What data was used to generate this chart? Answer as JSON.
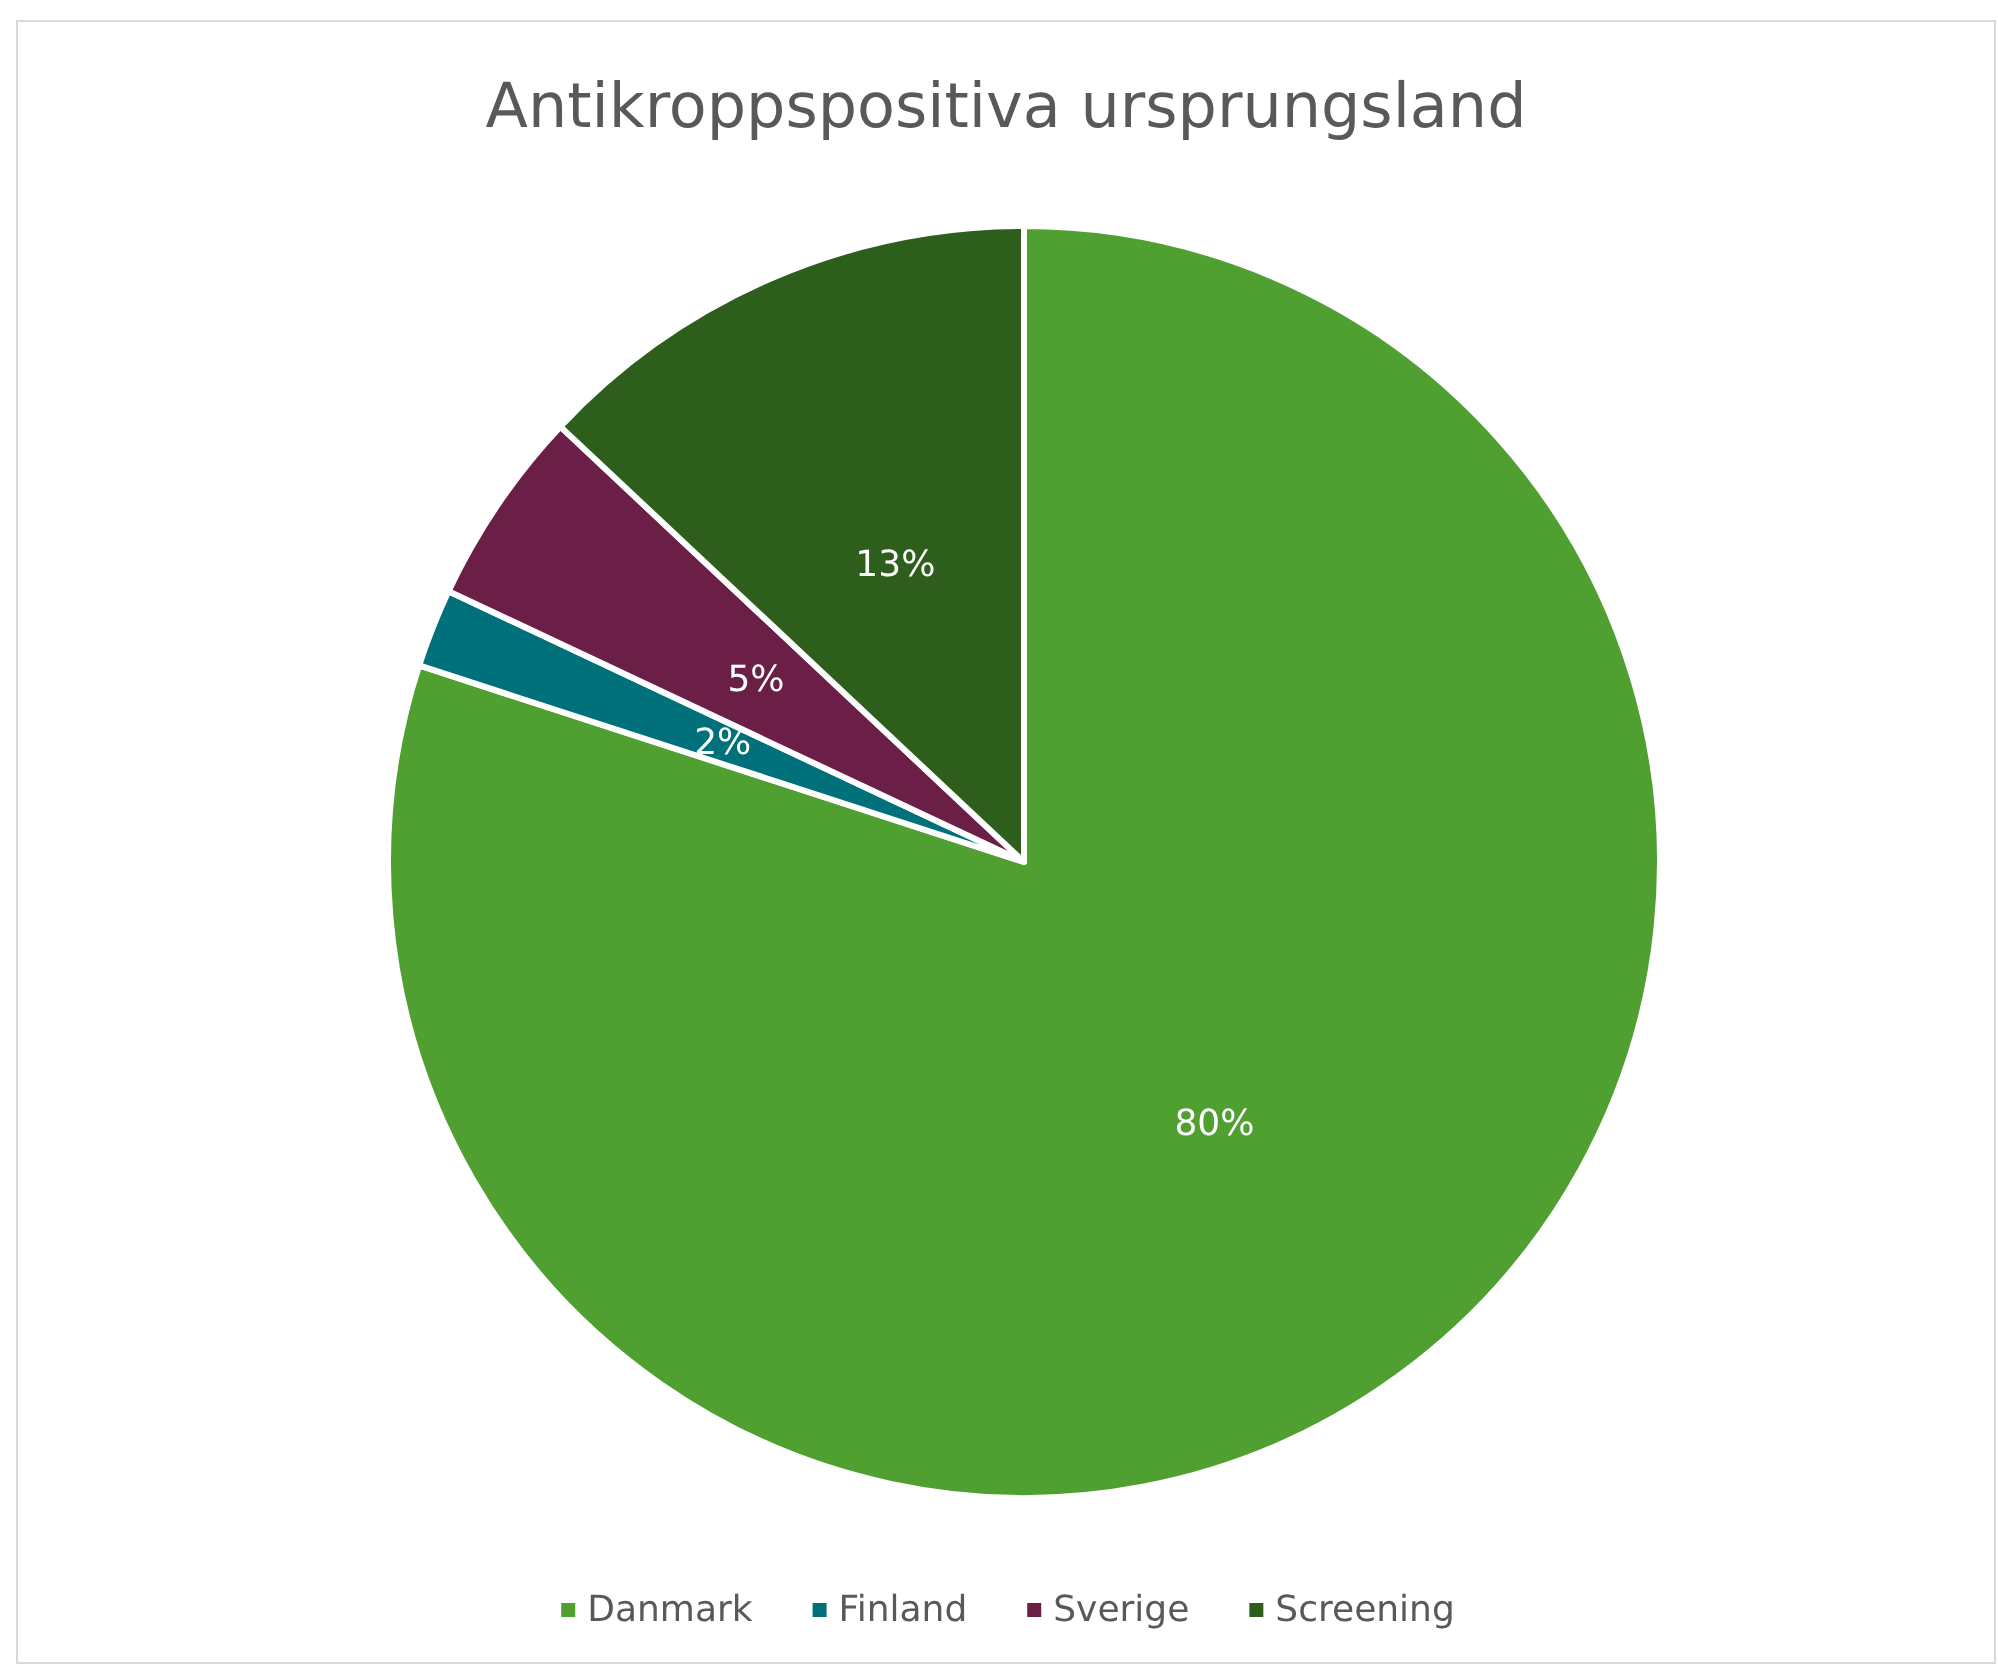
{
  "chart_data": {
    "type": "pie",
    "title": "Antikroppspositiva ursprungsland",
    "categories": [
      "Danmark",
      "Finland",
      "Sverige",
      "Screening"
    ],
    "values": [
      80,
      2,
      5,
      13
    ],
    "value_labels": [
      "80%",
      "2%",
      "5%",
      "13%"
    ],
    "colors": [
      "#4f9f31",
      "#00717a",
      "#6b1f47",
      "#2e5e1c"
    ],
    "legend": "bottom"
  }
}
